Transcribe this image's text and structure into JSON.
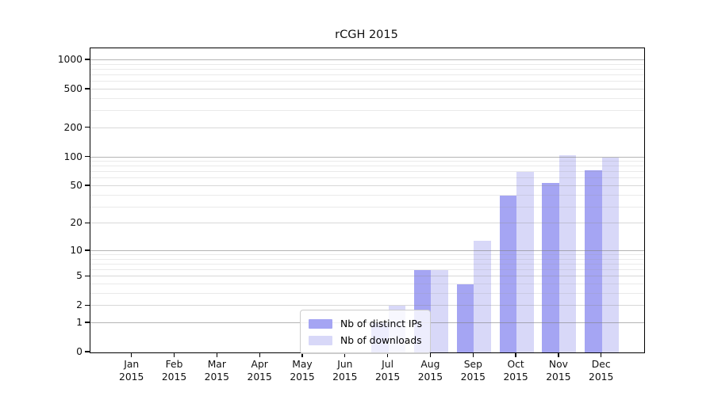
{
  "chart_data": {
    "type": "bar",
    "title": "rCGH 2015",
    "categories": [
      "Jan",
      "Feb",
      "Mar",
      "Apr",
      "May",
      "Jun",
      "Jul",
      "Aug",
      "Sep",
      "Oct",
      "Nov",
      "Dec"
    ],
    "x_year_label": "2015",
    "series": [
      {
        "name": "Nb of distinct IPs",
        "key": "distinct-ips",
        "color": "#a5a5f3",
        "values": [
          0,
          0,
          0,
          0,
          0,
          0,
          1,
          6,
          4,
          40,
          54,
          73
        ]
      },
      {
        "name": "Nb of downloads",
        "key": "downloads",
        "color": "#d8d8f8",
        "values": [
          0,
          0,
          0,
          0,
          0,
          0,
          2,
          6,
          13,
          70,
          105,
          100
        ]
      }
    ],
    "y_ticks": [
      0,
      1,
      2,
      5,
      10,
      20,
      50,
      100,
      200,
      500,
      1000
    ],
    "y_scale": "log1p",
    "ylim": [
      0,
      1283
    ],
    "grid": true,
    "legend_position": "inside lower center"
  }
}
